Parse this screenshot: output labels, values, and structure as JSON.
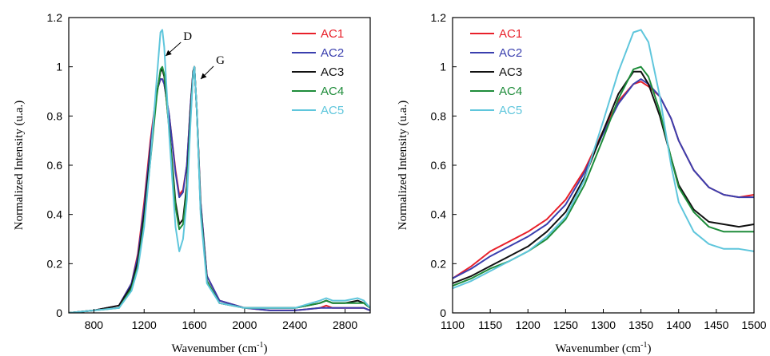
{
  "chart_data": [
    {
      "type": "line",
      "title": "",
      "xlabel": "Wavenumber (cm",
      "xlabel_sup": "-1",
      "xlabel_end": ")",
      "ylabel": "Normalized Intensity (u.a.)",
      "xlim": [
        600,
        3000
      ],
      "ylim": [
        0,
        1.2
      ],
      "xticks": [
        800,
        1200,
        1600,
        2000,
        2400,
        2800
      ],
      "yticks": [
        0,
        0.2,
        0.4,
        0.6,
        0.8,
        1,
        1.2
      ],
      "grid": false,
      "legend": "top-right",
      "annotations": [
        {
          "text": "D",
          "x": 1340,
          "y": 1.12
        },
        {
          "text": "G",
          "x": 1600,
          "y": 1.0
        }
      ],
      "series": [
        {
          "name": "AC1",
          "color": "#e8202a",
          "x": [
            600,
            800,
            1000,
            1100,
            1150,
            1200,
            1250,
            1300,
            1330,
            1345,
            1360,
            1400,
            1450,
            1480,
            1510,
            1540,
            1570,
            1590,
            1600,
            1620,
            1650,
            1700,
            1800,
            2000,
            2200,
            2400,
            2600,
            2650,
            2700,
            2800,
            2900,
            2950,
            3000
          ],
          "y": [
            0,
            0.01,
            0.03,
            0.12,
            0.24,
            0.45,
            0.7,
            0.9,
            0.95,
            0.95,
            0.93,
            0.8,
            0.58,
            0.48,
            0.5,
            0.6,
            0.85,
            0.98,
            1.0,
            0.82,
            0.45,
            0.15,
            0.05,
            0.02,
            0.01,
            0.01,
            0.02,
            0.03,
            0.02,
            0.02,
            0.02,
            0.02,
            0.01
          ]
        },
        {
          "name": "AC2",
          "color": "#3a3fae",
          "x": [
            600,
            800,
            1000,
            1100,
            1150,
            1200,
            1250,
            1300,
            1330,
            1345,
            1360,
            1400,
            1450,
            1480,
            1510,
            1540,
            1570,
            1590,
            1600,
            1620,
            1650,
            1700,
            1800,
            2000,
            2200,
            2400,
            2600,
            2650,
            2700,
            2800,
            2900,
            2950,
            3000
          ],
          "y": [
            0,
            0.01,
            0.03,
            0.12,
            0.23,
            0.43,
            0.68,
            0.9,
            0.95,
            0.95,
            0.93,
            0.8,
            0.57,
            0.47,
            0.49,
            0.6,
            0.85,
            0.98,
            1.0,
            0.82,
            0.45,
            0.15,
            0.05,
            0.02,
            0.01,
            0.01,
            0.02,
            0.02,
            0.02,
            0.02,
            0.02,
            0.02,
            0.01
          ]
        },
        {
          "name": "AC3",
          "color": "#111111",
          "x": [
            600,
            800,
            1000,
            1100,
            1150,
            1200,
            1250,
            1300,
            1330,
            1345,
            1360,
            1400,
            1450,
            1480,
            1510,
            1540,
            1570,
            1590,
            1600,
            1620,
            1650,
            1700,
            1800,
            2000,
            2200,
            2400,
            2600,
            2650,
            2700,
            2800,
            2900,
            2950,
            3000
          ],
          "y": [
            0,
            0.01,
            0.03,
            0.11,
            0.21,
            0.4,
            0.65,
            0.89,
            0.98,
            0.99,
            0.96,
            0.75,
            0.45,
            0.36,
            0.38,
            0.52,
            0.82,
            0.98,
            1.0,
            0.82,
            0.42,
            0.13,
            0.04,
            0.02,
            0.02,
            0.02,
            0.04,
            0.05,
            0.04,
            0.04,
            0.05,
            0.04,
            0.02
          ]
        },
        {
          "name": "AC4",
          "color": "#1e8c3a",
          "x": [
            600,
            800,
            1000,
            1100,
            1150,
            1200,
            1250,
            1300,
            1330,
            1345,
            1360,
            1400,
            1450,
            1480,
            1510,
            1540,
            1570,
            1590,
            1600,
            1620,
            1650,
            1700,
            1800,
            2000,
            2200,
            2400,
            2600,
            2650,
            2700,
            2800,
            2900,
            2950,
            3000
          ],
          "y": [
            0,
            0.01,
            0.02,
            0.1,
            0.19,
            0.37,
            0.62,
            0.88,
            0.99,
            1.0,
            0.97,
            0.74,
            0.43,
            0.34,
            0.36,
            0.5,
            0.8,
            0.97,
            1.0,
            0.82,
            0.42,
            0.13,
            0.04,
            0.02,
            0.02,
            0.02,
            0.04,
            0.05,
            0.04,
            0.04,
            0.04,
            0.04,
            0.02
          ]
        },
        {
          "name": "AC5",
          "color": "#5fc6dc",
          "x": [
            600,
            800,
            1000,
            1100,
            1150,
            1200,
            1250,
            1300,
            1330,
            1345,
            1360,
            1400,
            1450,
            1480,
            1510,
            1540,
            1570,
            1590,
            1600,
            1620,
            1650,
            1700,
            1800,
            2000,
            2200,
            2400,
            2600,
            2650,
            2700,
            2800,
            2900,
            2950,
            3000
          ],
          "y": [
            0,
            0.01,
            0.02,
            0.09,
            0.18,
            0.35,
            0.62,
            0.95,
            1.14,
            1.15,
            1.08,
            0.72,
            0.35,
            0.25,
            0.3,
            0.46,
            0.78,
            0.97,
            1.0,
            0.82,
            0.4,
            0.12,
            0.04,
            0.02,
            0.02,
            0.02,
            0.05,
            0.06,
            0.05,
            0.05,
            0.06,
            0.05,
            0.02
          ]
        }
      ]
    },
    {
      "type": "line",
      "title": "",
      "xlabel": "Wavenumber (cm",
      "xlabel_sup": "-1",
      "xlabel_end": ")",
      "ylabel": "Normalized Intensity (u.a.)",
      "xlim": [
        1100,
        1500
      ],
      "ylim": [
        0,
        1.2
      ],
      "xticks": [
        1100,
        1150,
        1200,
        1250,
        1300,
        1350,
        1400,
        1450,
        1500
      ],
      "yticks": [
        0,
        0.2,
        0.4,
        0.6,
        0.8,
        1,
        1.2
      ],
      "grid": false,
      "legend": "top-left",
      "series": [
        {
          "name": "AC1",
          "color": "#e8202a",
          "x": [
            1100,
            1125,
            1150,
            1175,
            1200,
            1225,
            1250,
            1275,
            1300,
            1320,
            1340,
            1350,
            1360,
            1375,
            1390,
            1400,
            1420,
            1440,
            1460,
            1480,
            1500
          ],
          "y": [
            0.14,
            0.19,
            0.25,
            0.29,
            0.33,
            0.38,
            0.46,
            0.58,
            0.74,
            0.86,
            0.93,
            0.94,
            0.92,
            0.88,
            0.79,
            0.7,
            0.58,
            0.51,
            0.48,
            0.47,
            0.48
          ]
        },
        {
          "name": "AC2",
          "color": "#3a3fae",
          "x": [
            1100,
            1125,
            1150,
            1175,
            1200,
            1225,
            1250,
            1275,
            1300,
            1320,
            1340,
            1350,
            1360,
            1375,
            1390,
            1400,
            1420,
            1440,
            1460,
            1480,
            1500
          ],
          "y": [
            0.14,
            0.18,
            0.23,
            0.27,
            0.31,
            0.36,
            0.44,
            0.57,
            0.73,
            0.85,
            0.93,
            0.95,
            0.93,
            0.88,
            0.79,
            0.7,
            0.58,
            0.51,
            0.48,
            0.47,
            0.47
          ]
        },
        {
          "name": "AC3",
          "color": "#111111",
          "x": [
            1100,
            1125,
            1150,
            1175,
            1200,
            1225,
            1250,
            1275,
            1300,
            1320,
            1340,
            1350,
            1360,
            1375,
            1390,
            1400,
            1420,
            1440,
            1460,
            1480,
            1500
          ],
          "y": [
            0.12,
            0.15,
            0.19,
            0.23,
            0.27,
            0.33,
            0.41,
            0.55,
            0.74,
            0.89,
            0.98,
            0.98,
            0.93,
            0.8,
            0.63,
            0.52,
            0.42,
            0.37,
            0.36,
            0.35,
            0.36
          ]
        },
        {
          "name": "AC4",
          "color": "#1e8c3a",
          "x": [
            1100,
            1125,
            1150,
            1175,
            1200,
            1225,
            1250,
            1275,
            1300,
            1320,
            1340,
            1350,
            1360,
            1375,
            1390,
            1400,
            1420,
            1440,
            1460,
            1480,
            1500
          ],
          "y": [
            0.11,
            0.14,
            0.18,
            0.21,
            0.25,
            0.3,
            0.38,
            0.52,
            0.71,
            0.87,
            0.99,
            1.0,
            0.96,
            0.82,
            0.63,
            0.51,
            0.41,
            0.35,
            0.33,
            0.33,
            0.33
          ]
        },
        {
          "name": "AC5",
          "color": "#5fc6dc",
          "x": [
            1100,
            1125,
            1150,
            1175,
            1200,
            1225,
            1250,
            1275,
            1300,
            1320,
            1340,
            1350,
            1360,
            1375,
            1390,
            1400,
            1420,
            1440,
            1460,
            1480,
            1500
          ],
          "y": [
            0.1,
            0.13,
            0.17,
            0.21,
            0.25,
            0.31,
            0.39,
            0.54,
            0.78,
            0.98,
            1.14,
            1.15,
            1.1,
            0.88,
            0.6,
            0.45,
            0.33,
            0.28,
            0.26,
            0.26,
            0.25
          ]
        }
      ]
    }
  ]
}
